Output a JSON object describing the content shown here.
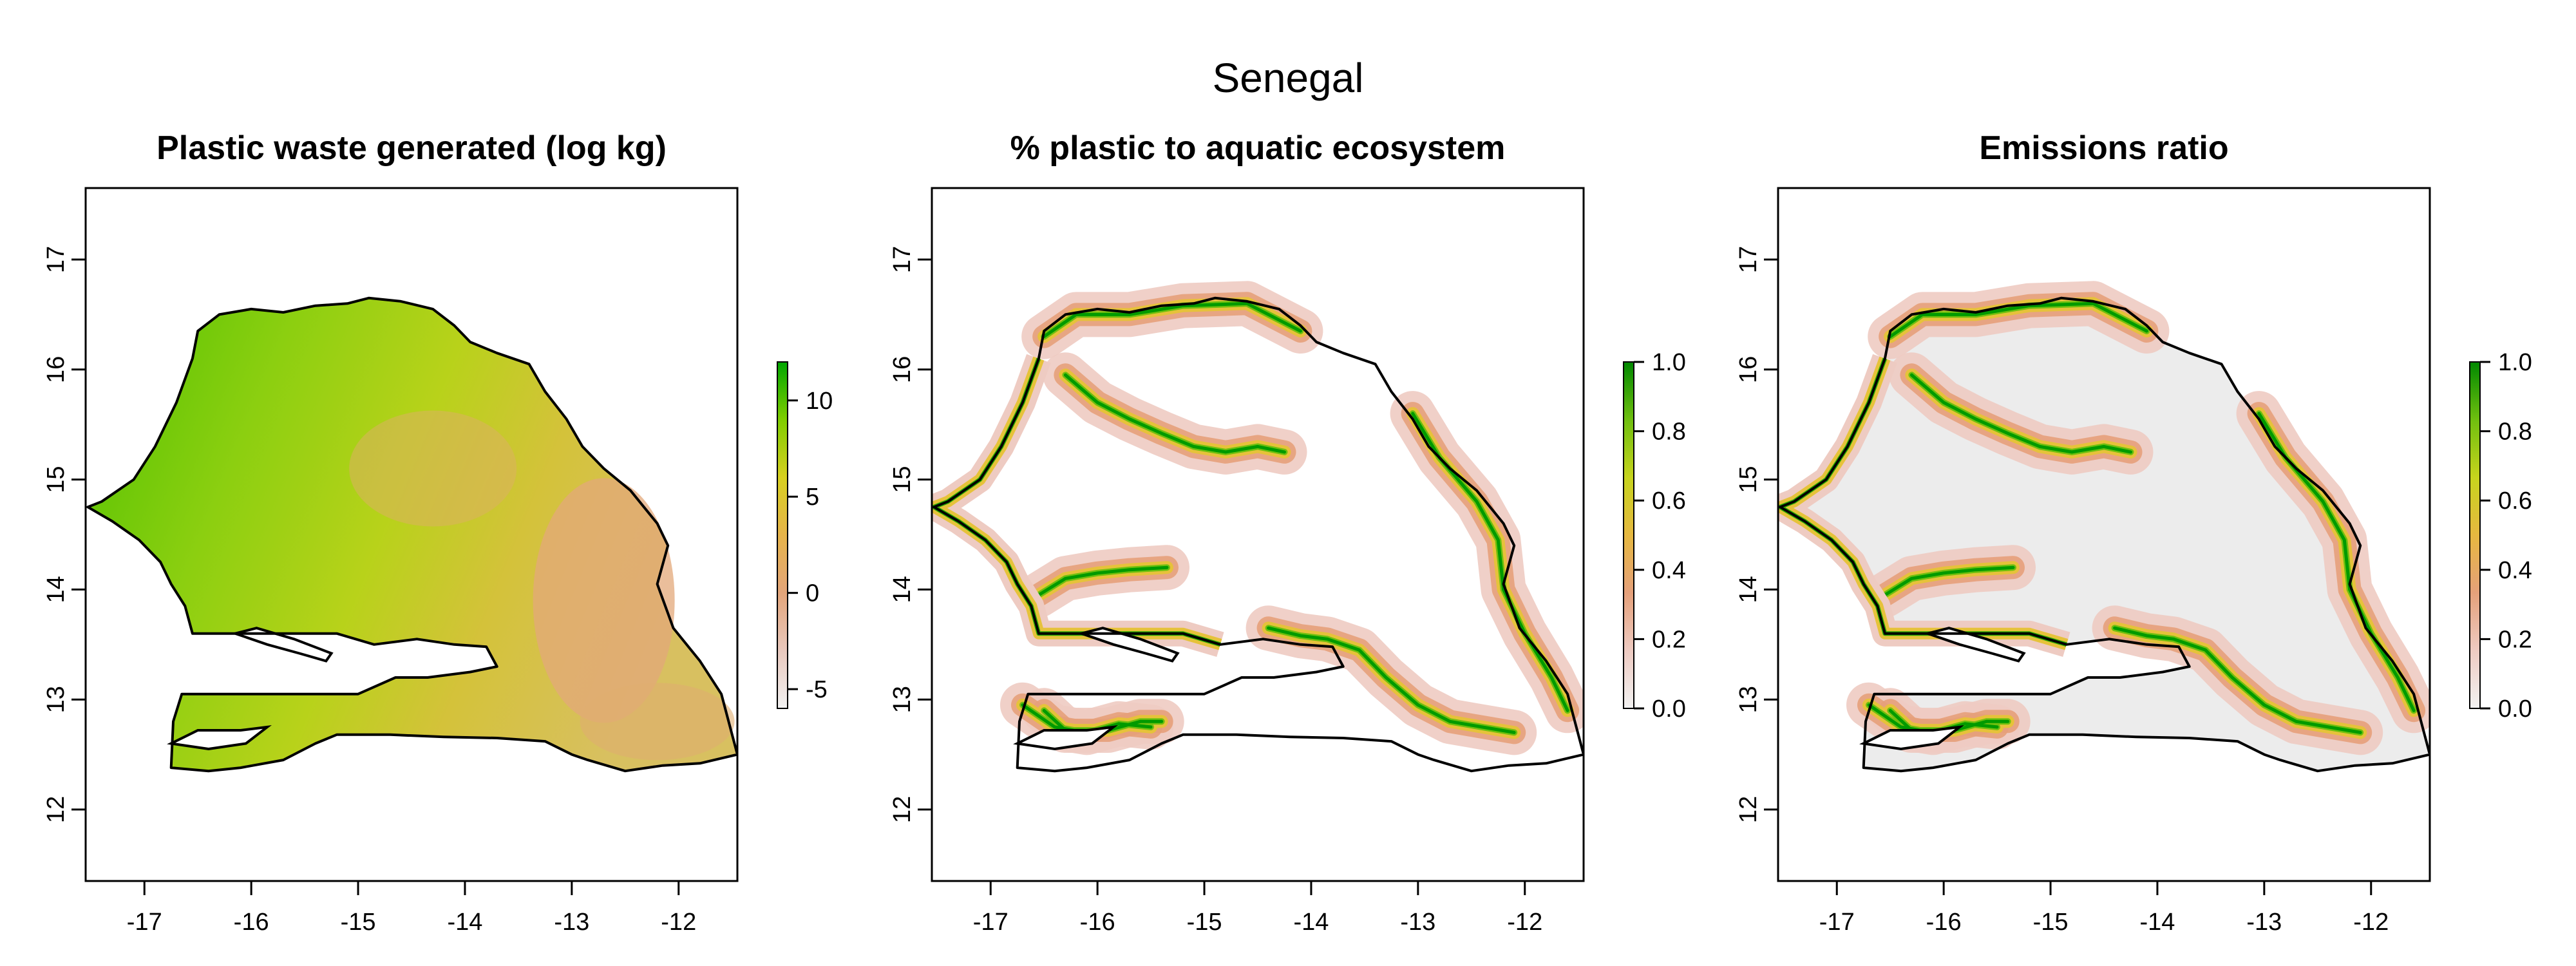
{
  "figure_title": "Senegal",
  "colors": {
    "waste_ramp": [
      "#f2f2f2",
      "#e8c8bd",
      "#e3a57a",
      "#e6b44a",
      "#d8d020",
      "#7fcd00",
      "#00a600"
    ],
    "fraction_ramp": [
      "#f2f2f2",
      "#eecbc2",
      "#e5a07a",
      "#e6b840",
      "#c7d41d",
      "#6fbf0f",
      "#008800"
    ],
    "land_white": "#ffffff",
    "land_gray": "#ececec",
    "border": "#000000",
    "river_outline": "#000000"
  },
  "panels": [
    {
      "title": "Plastic waste generated (log kg)",
      "fill": "waste",
      "x_ticks": [
        "-17",
        "-16",
        "-15",
        "-14",
        "-13",
        "-12"
      ],
      "y_ticks": [
        "12",
        "13",
        "14",
        "15",
        "16",
        "17"
      ],
      "legend_ticks": [
        "-5",
        "0",
        "5",
        "10"
      ],
      "legend_range": [
        -6,
        12
      ]
    },
    {
      "title": "% plastic to aquatic ecosystem",
      "fill": "fraction",
      "x_ticks": [
        "-17",
        "-16",
        "-15",
        "-14",
        "-13",
        "-12"
      ],
      "y_ticks": [
        "12",
        "13",
        "14",
        "15",
        "16",
        "17"
      ],
      "legend_ticks": [
        "0.0",
        "0.2",
        "0.4",
        "0.6",
        "0.8",
        "1.0"
      ],
      "legend_range": [
        0,
        1
      ]
    },
    {
      "title": "Emissions ratio",
      "fill": "fraction_gray",
      "x_ticks": [
        "-17",
        "-16",
        "-15",
        "-14",
        "-13",
        "-12"
      ],
      "y_ticks": [
        "12",
        "13",
        "14",
        "15",
        "16",
        "17"
      ],
      "legend_ticks": [
        "0.0",
        "0.2",
        "0.4",
        "0.6",
        "0.8",
        "1.0"
      ],
      "legend_range": [
        0,
        1
      ]
    }
  ],
  "map_extent": {
    "lon": [
      -17.55,
      -11.45
    ],
    "lat": [
      11.35,
      17.65
    ]
  }
}
